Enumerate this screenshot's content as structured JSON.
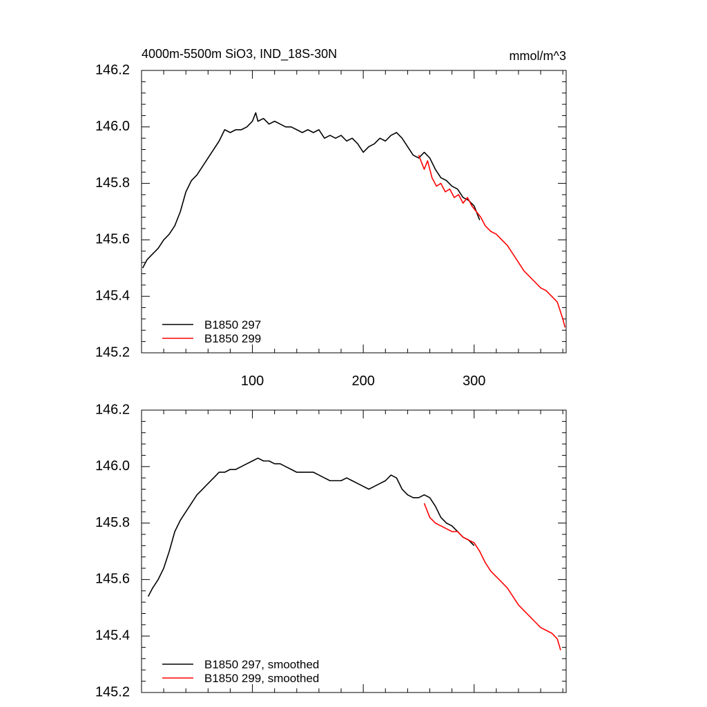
{
  "colors": {
    "series_297": "#000000",
    "series_299": "#ff0000",
    "axis": "#000000",
    "background": "#ffffff"
  },
  "chart_data": [
    {
      "type": "line",
      "title": "4000m-5500m SiO3, IND_18S-30N",
      "units": "mmol/m^3",
      "xlim": [
        0,
        383
      ],
      "ylim": [
        145.2,
        146.2
      ],
      "x_ticks": [
        100,
        200,
        300
      ],
      "y_ticks": [
        145.2,
        145.4,
        145.6,
        145.8,
        146.0,
        146.2
      ],
      "x_tick_labels": [
        "100",
        "200",
        "300"
      ],
      "y_tick_labels": [
        "145.2",
        "145.4",
        "145.6",
        "145.8",
        "146.0",
        "146.2"
      ],
      "grid": false,
      "legend_position": "bottom-left",
      "series": [
        {
          "name": "B1850 297",
          "color": "#000000",
          "points": [
            [
              1,
              145.5
            ],
            [
              5,
              145.53
            ],
            [
              10,
              145.55
            ],
            [
              15,
              145.57
            ],
            [
              20,
              145.6
            ],
            [
              25,
              145.62
            ],
            [
              30,
              145.65
            ],
            [
              35,
              145.7
            ],
            [
              40,
              145.77
            ],
            [
              45,
              145.81
            ],
            [
              50,
              145.83
            ],
            [
              55,
              145.86
            ],
            [
              60,
              145.89
            ],
            [
              65,
              145.92
            ],
            [
              70,
              145.95
            ],
            [
              75,
              145.99
            ],
            [
              80,
              145.98
            ],
            [
              85,
              145.99
            ],
            [
              90,
              145.99
            ],
            [
              95,
              146.0
            ],
            [
              100,
              146.02
            ],
            [
              103,
              146.05
            ],
            [
              105,
              146.02
            ],
            [
              110,
              146.03
            ],
            [
              115,
              146.01
            ],
            [
              120,
              146.02
            ],
            [
              125,
              146.01
            ],
            [
              130,
              146.0
            ],
            [
              135,
              146.0
            ],
            [
              140,
              145.99
            ],
            [
              145,
              145.98
            ],
            [
              150,
              145.99
            ],
            [
              155,
              145.98
            ],
            [
              160,
              145.99
            ],
            [
              165,
              145.96
            ],
            [
              170,
              145.97
            ],
            [
              175,
              145.96
            ],
            [
              180,
              145.97
            ],
            [
              185,
              145.95
            ],
            [
              190,
              145.96
            ],
            [
              195,
              145.94
            ],
            [
              200,
              145.91
            ],
            [
              205,
              145.93
            ],
            [
              210,
              145.94
            ],
            [
              215,
              145.96
            ],
            [
              220,
              145.95
            ],
            [
              225,
              145.97
            ],
            [
              230,
              145.98
            ],
            [
              235,
              145.96
            ],
            [
              240,
              145.93
            ],
            [
              245,
              145.9
            ],
            [
              250,
              145.89
            ],
            [
              255,
              145.91
            ],
            [
              260,
              145.89
            ],
            [
              265,
              145.85
            ],
            [
              270,
              145.82
            ],
            [
              275,
              145.81
            ],
            [
              280,
              145.79
            ],
            [
              285,
              145.78
            ],
            [
              290,
              145.75
            ],
            [
              295,
              145.74
            ],
            [
              300,
              145.72
            ],
            [
              305,
              145.67
            ]
          ]
        },
        {
          "name": "B1850 299",
          "color": "#ff0000",
          "points": [
            [
              250,
              145.9
            ],
            [
              255,
              145.85
            ],
            [
              258,
              145.88
            ],
            [
              262,
              145.82
            ],
            [
              266,
              145.79
            ],
            [
              270,
              145.8
            ],
            [
              274,
              145.77
            ],
            [
              278,
              145.78
            ],
            [
              282,
              145.75
            ],
            [
              286,
              145.76
            ],
            [
              290,
              145.73
            ],
            [
              294,
              145.75
            ],
            [
              298,
              145.72
            ],
            [
              302,
              145.7
            ],
            [
              306,
              145.68
            ],
            [
              310,
              145.65
            ],
            [
              315,
              145.63
            ],
            [
              320,
              145.62
            ],
            [
              325,
              145.6
            ],
            [
              330,
              145.58
            ],
            [
              335,
              145.55
            ],
            [
              340,
              145.52
            ],
            [
              345,
              145.49
            ],
            [
              350,
              145.47
            ],
            [
              355,
              145.45
            ],
            [
              360,
              145.43
            ],
            [
              365,
              145.42
            ],
            [
              370,
              145.4
            ],
            [
              375,
              145.38
            ],
            [
              380,
              145.32
            ],
            [
              382,
              145.29
            ]
          ]
        }
      ]
    },
    {
      "type": "line",
      "xlim": [
        0,
        383
      ],
      "ylim": [
        145.2,
        146.2
      ],
      "y_ticks": [
        145.2,
        145.4,
        145.6,
        145.8,
        146.0,
        146.2
      ],
      "y_tick_labels": [
        "145.2",
        "145.4",
        "145.6",
        "145.8",
        "146.0",
        "146.2"
      ],
      "grid": false,
      "legend_position": "bottom-left",
      "series": [
        {
          "name": "B1850 297, smoothed",
          "color": "#000000",
          "points": [
            [
              6,
              145.54
            ],
            [
              10,
              145.57
            ],
            [
              15,
              145.6
            ],
            [
              20,
              145.64
            ],
            [
              25,
              145.7
            ],
            [
              30,
              145.77
            ],
            [
              35,
              145.81
            ],
            [
              40,
              145.84
            ],
            [
              45,
              145.87
            ],
            [
              50,
              145.9
            ],
            [
              55,
              145.92
            ],
            [
              60,
              145.94
            ],
            [
              65,
              145.96
            ],
            [
              70,
              145.98
            ],
            [
              75,
              145.98
            ],
            [
              80,
              145.99
            ],
            [
              85,
              145.99
            ],
            [
              90,
              146.0
            ],
            [
              95,
              146.01
            ],
            [
              100,
              146.02
            ],
            [
              105,
              146.03
            ],
            [
              110,
              146.02
            ],
            [
              115,
              146.02
            ],
            [
              120,
              146.01
            ],
            [
              125,
              146.01
            ],
            [
              130,
              146.0
            ],
            [
              135,
              145.99
            ],
            [
              140,
              145.98
            ],
            [
              145,
              145.98
            ],
            [
              150,
              145.98
            ],
            [
              155,
              145.98
            ],
            [
              160,
              145.97
            ],
            [
              165,
              145.96
            ],
            [
              170,
              145.95
            ],
            [
              175,
              145.95
            ],
            [
              180,
              145.95
            ],
            [
              185,
              145.96
            ],
            [
              190,
              145.95
            ],
            [
              195,
              145.94
            ],
            [
              200,
              145.93
            ],
            [
              205,
              145.92
            ],
            [
              210,
              145.93
            ],
            [
              215,
              145.94
            ],
            [
              220,
              145.95
            ],
            [
              225,
              145.97
            ],
            [
              230,
              145.96
            ],
            [
              235,
              145.92
            ],
            [
              240,
              145.9
            ],
            [
              245,
              145.89
            ],
            [
              250,
              145.89
            ],
            [
              255,
              145.9
            ],
            [
              260,
              145.89
            ],
            [
              265,
              145.86
            ],
            [
              270,
              145.82
            ],
            [
              275,
              145.8
            ],
            [
              280,
              145.79
            ],
            [
              285,
              145.77
            ],
            [
              290,
              145.75
            ],
            [
              295,
              145.74
            ],
            [
              300,
              145.72
            ]
          ]
        },
        {
          "name": "B1850 299, smoothed",
          "color": "#ff0000",
          "points": [
            [
              255,
              145.87
            ],
            [
              260,
              145.82
            ],
            [
              265,
              145.8
            ],
            [
              270,
              145.79
            ],
            [
              275,
              145.78
            ],
            [
              280,
              145.77
            ],
            [
              285,
              145.77
            ],
            [
              290,
              145.75
            ],
            [
              295,
              145.74
            ],
            [
              300,
              145.73
            ],
            [
              305,
              145.7
            ],
            [
              310,
              145.66
            ],
            [
              315,
              145.63
            ],
            [
              320,
              145.61
            ],
            [
              325,
              145.59
            ],
            [
              330,
              145.57
            ],
            [
              335,
              145.54
            ],
            [
              340,
              145.51
            ],
            [
              345,
              145.49
            ],
            [
              350,
              145.47
            ],
            [
              355,
              145.45
            ],
            [
              360,
              145.43
            ],
            [
              365,
              145.42
            ],
            [
              370,
              145.41
            ],
            [
              375,
              145.39
            ],
            [
              378,
              145.35
            ]
          ]
        }
      ]
    }
  ]
}
